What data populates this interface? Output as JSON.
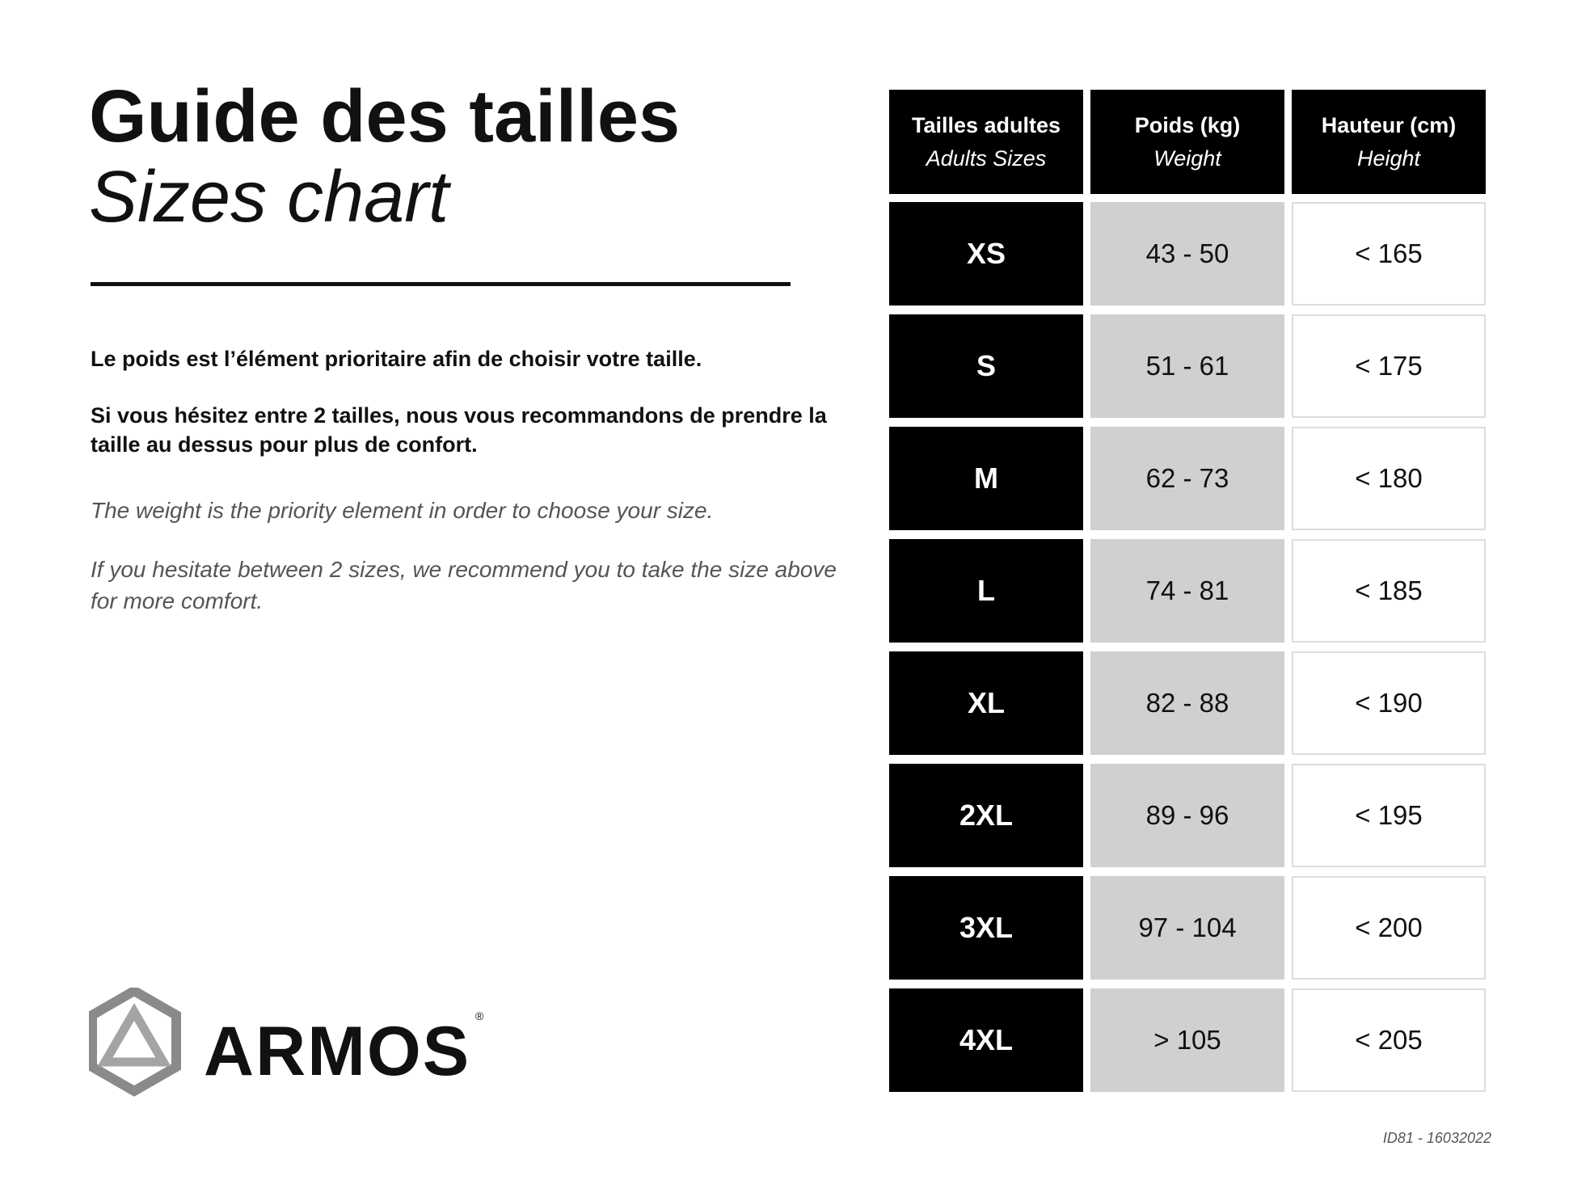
{
  "title": "Guide des tailles",
  "subtitle": "Sizes chart",
  "paragraphs_fr": [
    "Le poids est l’élément prioritaire afin de choisir votre taille.",
    "Si vous hésitez entre 2 tailles, nous vous recommandons de prendre la taille au dessus pour plus de confort."
  ],
  "paragraphs_en": [
    "The weight is the priority element in order to choose your size.",
    "If you hesitate between 2 sizes, we recommend you to take the size above for more comfort."
  ],
  "logo": {
    "text": "ARMOS",
    "mark": "®"
  },
  "footer_id": "ID81 - 16032022",
  "table": {
    "headers": [
      {
        "fr": "Tailles adultes",
        "en": "Adults Sizes"
      },
      {
        "fr": "Poids (kg)",
        "en": "Weight"
      },
      {
        "fr": "Hauteur (cm)",
        "en": "Height"
      }
    ],
    "rows": [
      {
        "size": "XS",
        "weight": "43 - 50",
        "height": "< 165"
      },
      {
        "size": "S",
        "weight": "51 - 61",
        "height": "< 175"
      },
      {
        "size": "M",
        "weight": "62 - 73",
        "height": "< 180"
      },
      {
        "size": "L",
        "weight": "74 - 81",
        "height": "< 185"
      },
      {
        "size": "XL",
        "weight": "82 - 88",
        "height": "< 190"
      },
      {
        "size": "2XL",
        "weight": "89 - 96",
        "height": "< 195"
      },
      {
        "size": "3XL",
        "weight": "97 - 104",
        "height": "< 200"
      },
      {
        "size": "4XL",
        "weight": "> 105",
        "height": "< 205"
      }
    ]
  }
}
